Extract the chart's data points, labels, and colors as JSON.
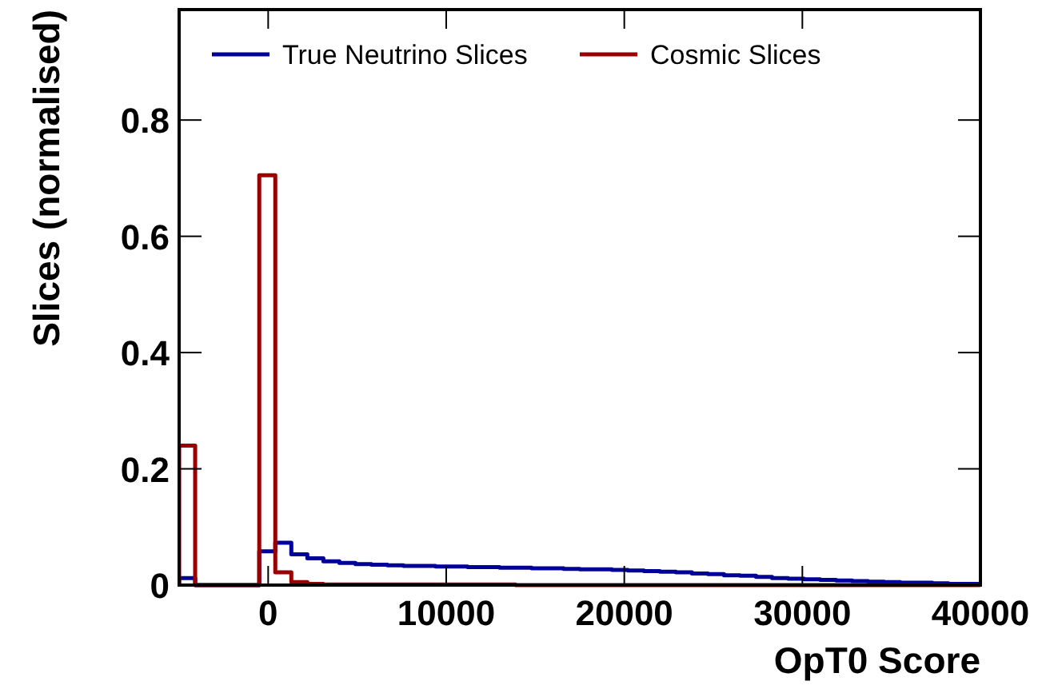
{
  "chart_data": {
    "type": "histogram",
    "xlabel": "OpT0 Score",
    "ylabel": "Slices (normalised)",
    "bins": [
      -5000,
      -4100,
      -3200,
      -2300,
      -1400,
      -500,
      400,
      1300,
      2200,
      3100,
      4000,
      4900,
      5800,
      6700,
      7600,
      8500,
      9400,
      10300,
      11200,
      12100,
      13000,
      13900,
      14800,
      15700,
      16600,
      17500,
      18400,
      19300,
      20200,
      21100,
      22000,
      22900,
      23800,
      24700,
      25600,
      26500,
      27400,
      28300,
      29200,
      30100,
      31000,
      31900,
      32800,
      33700,
      34600,
      35500,
      36400,
      37300,
      38200,
      39100,
      40000
    ],
    "series": [
      {
        "name": "True Neutrino Slices",
        "color": "#000099",
        "values": [
          0.012,
          0,
          0,
          0,
          0,
          0.058,
          0.073,
          0.053,
          0.046,
          0.041,
          0.038,
          0.036,
          0.035,
          0.034,
          0.033,
          0.033,
          0.032,
          0.032,
          0.031,
          0.031,
          0.03,
          0.03,
          0.029,
          0.029,
          0.028,
          0.027,
          0.027,
          0.026,
          0.025,
          0.024,
          0.023,
          0.022,
          0.02,
          0.019,
          0.017,
          0.016,
          0.014,
          0.012,
          0.011,
          0.01,
          0.009,
          0.008,
          0.007,
          0.006,
          0.005,
          0.004,
          0.004,
          0.003,
          0.002,
          0.002
        ]
      },
      {
        "name": "Cosmic Slices",
        "color": "#990000",
        "values": [
          0.24,
          0,
          0,
          0,
          0,
          0.705,
          0.022,
          0.005,
          0.002,
          0.001,
          0.001,
          0.001,
          0.001,
          0.001,
          0.001,
          0.001,
          0.001,
          0.001,
          0.001,
          0.001,
          0.001,
          0,
          0,
          0,
          0,
          0,
          0,
          0,
          0,
          0,
          0,
          0,
          0,
          0,
          0,
          0,
          0,
          0,
          0,
          0,
          0,
          0,
          0,
          0,
          0,
          0,
          0,
          0,
          0,
          0
        ]
      }
    ],
    "xlim": [
      -5000,
      40000
    ],
    "ylim": [
      0,
      0.99
    ],
    "xticks": [
      0,
      10000,
      20000,
      30000,
      40000
    ],
    "yticks": [
      0,
      0.2,
      0.4,
      0.6,
      0.8
    ],
    "legend": "top"
  }
}
